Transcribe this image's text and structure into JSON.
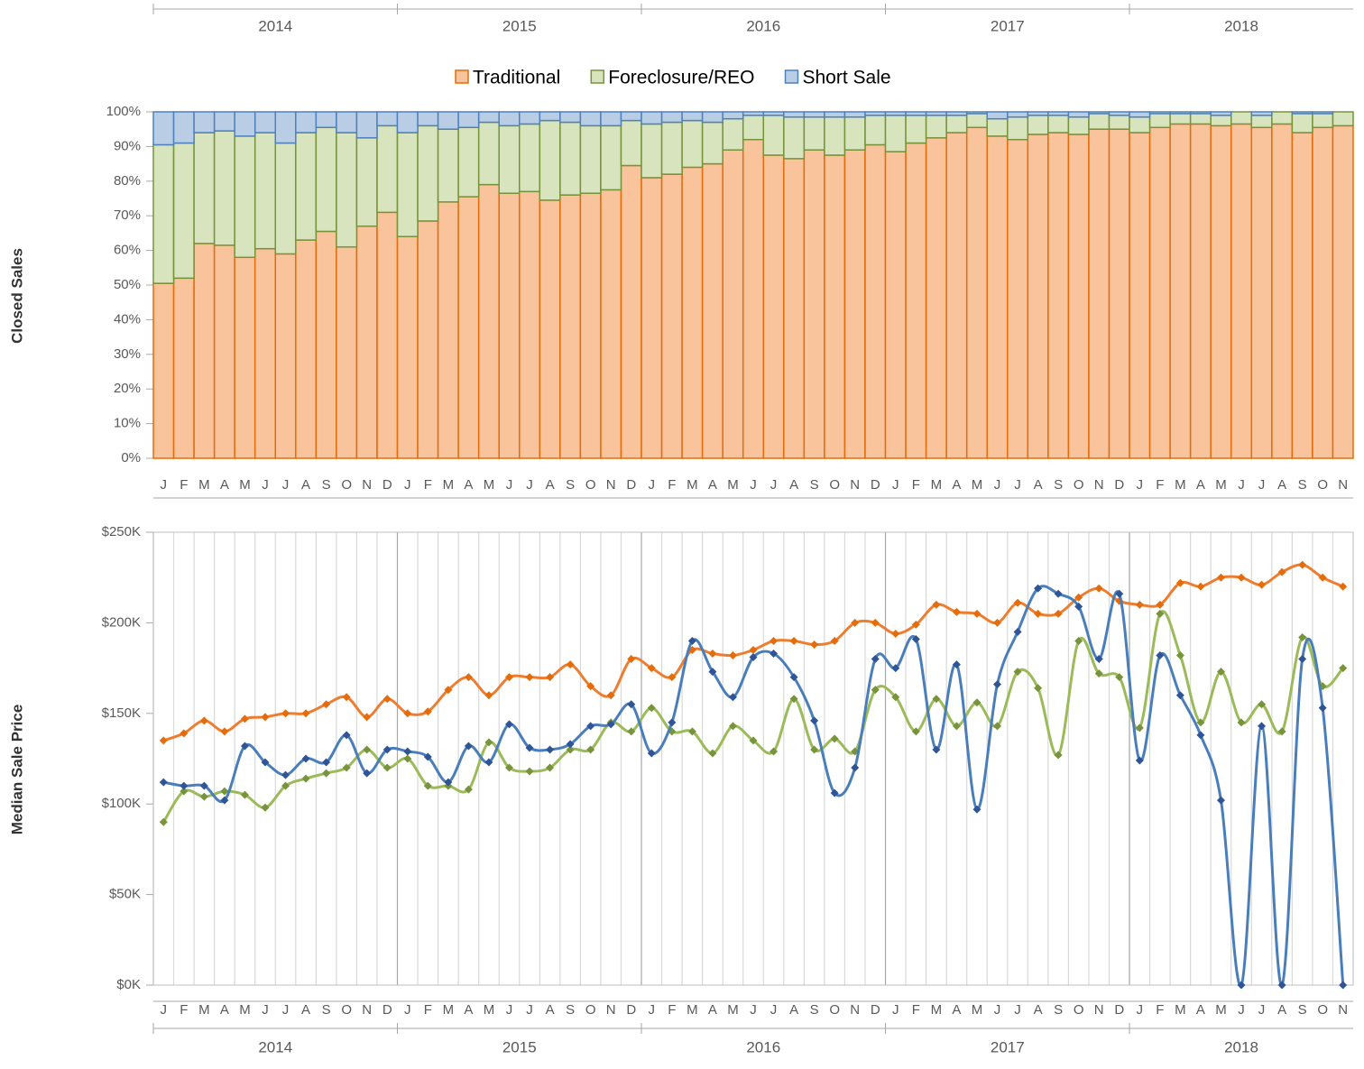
{
  "chart_data": [
    {
      "type": "stacked-bar-100",
      "y_label": "Closed Sales",
      "years": [
        "2014",
        "2015",
        "2016",
        "2017",
        "2018"
      ],
      "categories": [
        "J",
        "F",
        "M",
        "A",
        "M",
        "J",
        "J",
        "A",
        "S",
        "O",
        "N",
        "D",
        "J",
        "F",
        "M",
        "A",
        "M",
        "J",
        "J",
        "A",
        "S",
        "O",
        "N",
        "D",
        "J",
        "F",
        "M",
        "A",
        "M",
        "J",
        "J",
        "A",
        "S",
        "O",
        "N",
        "D",
        "J",
        "F",
        "M",
        "A",
        "M",
        "J",
        "J",
        "A",
        "S",
        "O",
        "N",
        "D",
        "J",
        "F",
        "M",
        "A",
        "M",
        "J",
        "J",
        "A",
        "S",
        "O",
        "N"
      ],
      "ylim": [
        0,
        100
      ],
      "yticks": [
        {
          "value": 0,
          "label": "0%"
        },
        {
          "value": 10,
          "label": "10%"
        },
        {
          "value": 20,
          "label": "20%"
        },
        {
          "value": 30,
          "label": "30%"
        },
        {
          "value": 40,
          "label": "40%"
        },
        {
          "value": 50,
          "label": "50%"
        },
        {
          "value": 60,
          "label": "60%"
        },
        {
          "value": 70,
          "label": "70%"
        },
        {
          "value": 80,
          "label": "80%"
        },
        {
          "value": 90,
          "label": "90%"
        },
        {
          "value": 100,
          "label": "100%"
        }
      ],
      "series": [
        {
          "name": "Traditional",
          "color": "#f9c49c",
          "edge": "#e46c0a",
          "values": [
            50.5,
            52,
            62,
            61.5,
            58,
            60.5,
            59,
            63,
            65.5,
            61,
            67,
            71,
            64,
            68.5,
            74,
            75.5,
            79,
            76.5,
            77,
            74.5,
            76,
            76.5,
            77.5,
            84.5,
            81,
            82,
            84,
            85,
            89,
            92,
            87.5,
            86.5,
            89,
            87.5,
            89,
            90.5,
            88.5,
            91,
            92.5,
            94,
            95.5,
            93,
            92,
            93.5,
            94,
            93.5,
            95,
            95,
            94,
            95.5,
            96.5,
            96.5,
            96,
            96.5,
            95.5,
            96.5,
            94,
            95.5,
            96
          ]
        },
        {
          "name": "Foreclosure/REO",
          "color": "#d7e4bd",
          "edge": "#77933c",
          "values": [
            40,
            39,
            32,
            33,
            35,
            33.5,
            32,
            31,
            30,
            33,
            25.5,
            25,
            30,
            27.5,
            21,
            20,
            18,
            19.5,
            19.5,
            23,
            21,
            19.5,
            18.5,
            13,
            15.5,
            15,
            13.5,
            12,
            9,
            7,
            11.5,
            12,
            9.5,
            11,
            9.5,
            8.5,
            10.5,
            8,
            6.5,
            5,
            4,
            5,
            6.5,
            5.5,
            5,
            5,
            4.5,
            4,
            4.5,
            4,
            3,
            3,
            3,
            3.5,
            3.5,
            3.5,
            5.5,
            4,
            4
          ]
        },
        {
          "name": "Short Sale",
          "color": "#b9cde5",
          "edge": "#4f81bd",
          "values": [
            9.5,
            9,
            6,
            5.5,
            7,
            6,
            9,
            6,
            4.5,
            6,
            7.5,
            4,
            6,
            4,
            5,
            4.5,
            3,
            4,
            3.5,
            2.5,
            3,
            4,
            4,
            2.5,
            3.5,
            3,
            2.5,
            3,
            2,
            1,
            1,
            1.5,
            1.5,
            1.5,
            1.5,
            1,
            1,
            1,
            1,
            1,
            0.5,
            2,
            1.5,
            1,
            1,
            1.5,
            0.5,
            1,
            1.5,
            0.5,
            0.5,
            0.5,
            1,
            0,
            1,
            0,
            0.5,
            0.5,
            0
          ]
        }
      ]
    },
    {
      "type": "line",
      "y_label": "Median Sale Price",
      "years": [
        "2014",
        "2015",
        "2016",
        "2017",
        "2018"
      ],
      "categories": [
        "J",
        "F",
        "M",
        "A",
        "M",
        "J",
        "J",
        "A",
        "S",
        "O",
        "N",
        "D",
        "J",
        "F",
        "M",
        "A",
        "M",
        "J",
        "J",
        "A",
        "S",
        "O",
        "N",
        "D",
        "J",
        "F",
        "M",
        "A",
        "M",
        "J",
        "J",
        "A",
        "S",
        "O",
        "N",
        "D",
        "J",
        "F",
        "M",
        "A",
        "M",
        "J",
        "J",
        "A",
        "S",
        "O",
        "N",
        "D",
        "J",
        "F",
        "M",
        "A",
        "M",
        "J",
        "J",
        "A",
        "S",
        "O",
        "N"
      ],
      "ylim": [
        0,
        250
      ],
      "yticks": [
        {
          "value": 0,
          "label": "$0K"
        },
        {
          "value": 50,
          "label": "$50K"
        },
        {
          "value": 100,
          "label": "$100K"
        },
        {
          "value": 150,
          "label": "$150K"
        },
        {
          "value": 200,
          "label": "$200K"
        },
        {
          "value": 250,
          "label": "$250K"
        }
      ],
      "series": [
        {
          "color": "#ed7d31",
          "marker": "#e46c0a",
          "values": [
            135,
            139,
            146,
            140,
            147,
            148,
            150,
            150,
            155,
            159,
            148,
            158,
            150,
            151,
            163,
            170,
            160,
            170,
            170,
            170,
            177,
            165,
            160,
            180,
            175,
            170,
            185,
            183,
            182,
            185,
            190,
            190,
            188,
            190,
            200,
            200,
            194,
            199,
            210,
            206,
            205,
            200,
            211,
            205,
            205,
            214,
            219,
            212,
            210,
            210,
            222,
            220,
            225,
            225,
            221,
            228,
            232,
            225,
            220
          ]
        },
        {
          "color": "#9bbb59",
          "marker": "#77933c",
          "values": [
            90,
            107,
            104,
            107,
            105,
            98,
            110,
            114,
            117,
            120,
            130,
            120,
            125,
            110,
            110,
            108,
            134,
            120,
            118,
            120,
            130,
            130,
            145,
            140,
            153,
            140,
            140,
            128,
            143,
            135,
            129,
            158,
            130,
            136,
            129,
            163,
            159,
            140,
            158,
            143,
            156,
            143,
            173,
            164,
            127,
            190,
            172,
            170,
            142,
            205,
            182,
            145,
            173,
            145,
            155,
            140,
            192,
            165,
            175
          ]
        },
        {
          "color": "#4a7ebb",
          "marker": "#2f5597",
          "values": [
            112,
            110,
            110,
            102,
            132,
            123,
            116,
            125,
            123,
            138,
            117,
            130,
            129,
            126,
            112,
            132,
            123,
            144,
            131,
            130,
            133,
            143,
            144,
            155,
            128,
            145,
            190,
            173,
            159,
            181,
            183,
            170,
            146,
            106,
            120,
            180,
            175,
            191,
            130,
            177,
            97,
            166,
            195,
            219,
            216,
            209,
            180,
            216,
            124,
            182,
            160,
            138,
            102,
            0,
            143,
            0,
            180,
            153,
            0
          ]
        }
      ]
    }
  ]
}
